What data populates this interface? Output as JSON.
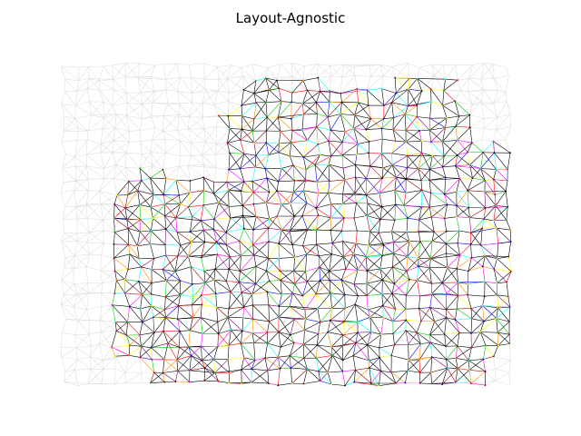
{
  "figure": {
    "title": "Layout-Agnostic"
  },
  "graph": {
    "background_edge_color": "#e0e0e0",
    "highlight_edge_color": "#000000",
    "highlight_edge_colors": [
      "#000000",
      "#ff0000",
      "#00cc00",
      "#0000ff",
      "#ffff00",
      "#ff00ff",
      "#00ffff",
      "#8b0000",
      "#ff8c00",
      "#800080"
    ],
    "node_color": "#000000"
  }
}
